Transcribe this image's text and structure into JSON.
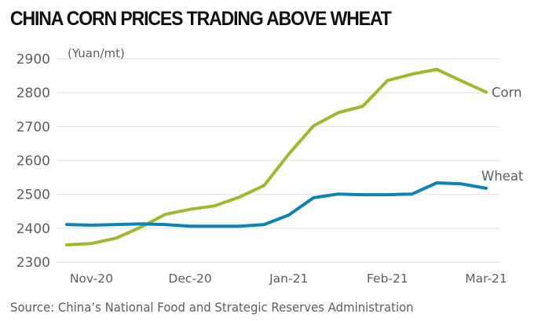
{
  "chart_data": {
    "type": "line",
    "title": "CHINA CORN PRICES TRADING ABOVE WHEAT",
    "ylabel": "(Yuan/mt)",
    "xlabel": "",
    "ylim": [
      2300,
      2900
    ],
    "yticks": [
      2300,
      2400,
      2500,
      2600,
      2700,
      2800,
      2900
    ],
    "ytick_labels": [
      "2300",
      "2400",
      "2500",
      "2600",
      "2700",
      "2800",
      "2900"
    ],
    "grid": true,
    "x_points": 18,
    "xtick_labels": [
      {
        "index": 1,
        "label": "Nov-20"
      },
      {
        "index": 5,
        "label": "Dec-20"
      },
      {
        "index": 9,
        "label": "Jan-21"
      },
      {
        "index": 13,
        "label": "Feb-21"
      },
      {
        "index": 17,
        "label": "Mar-21"
      }
    ],
    "series": [
      {
        "name": "Corn",
        "color": "#9bbb2c",
        "values": [
          2351,
          2355,
          2371,
          2403,
          2441,
          2456,
          2466,
          2492,
          2526,
          2619,
          2702,
          2741,
          2760,
          2836,
          2855,
          2869,
          2835,
          2802
        ]
      },
      {
        "name": "Wheat",
        "color": "#0b84b4",
        "values": [
          2411,
          2409,
          2411,
          2413,
          2411,
          2406,
          2406,
          2406,
          2411,
          2439,
          2490,
          2501,
          2499,
          2499,
          2501,
          2534,
          2531,
          2518
        ]
      }
    ],
    "legend": "inline-right-end-labels",
    "source": "Source: China’s National Food and Strategic Reserves Administration"
  }
}
